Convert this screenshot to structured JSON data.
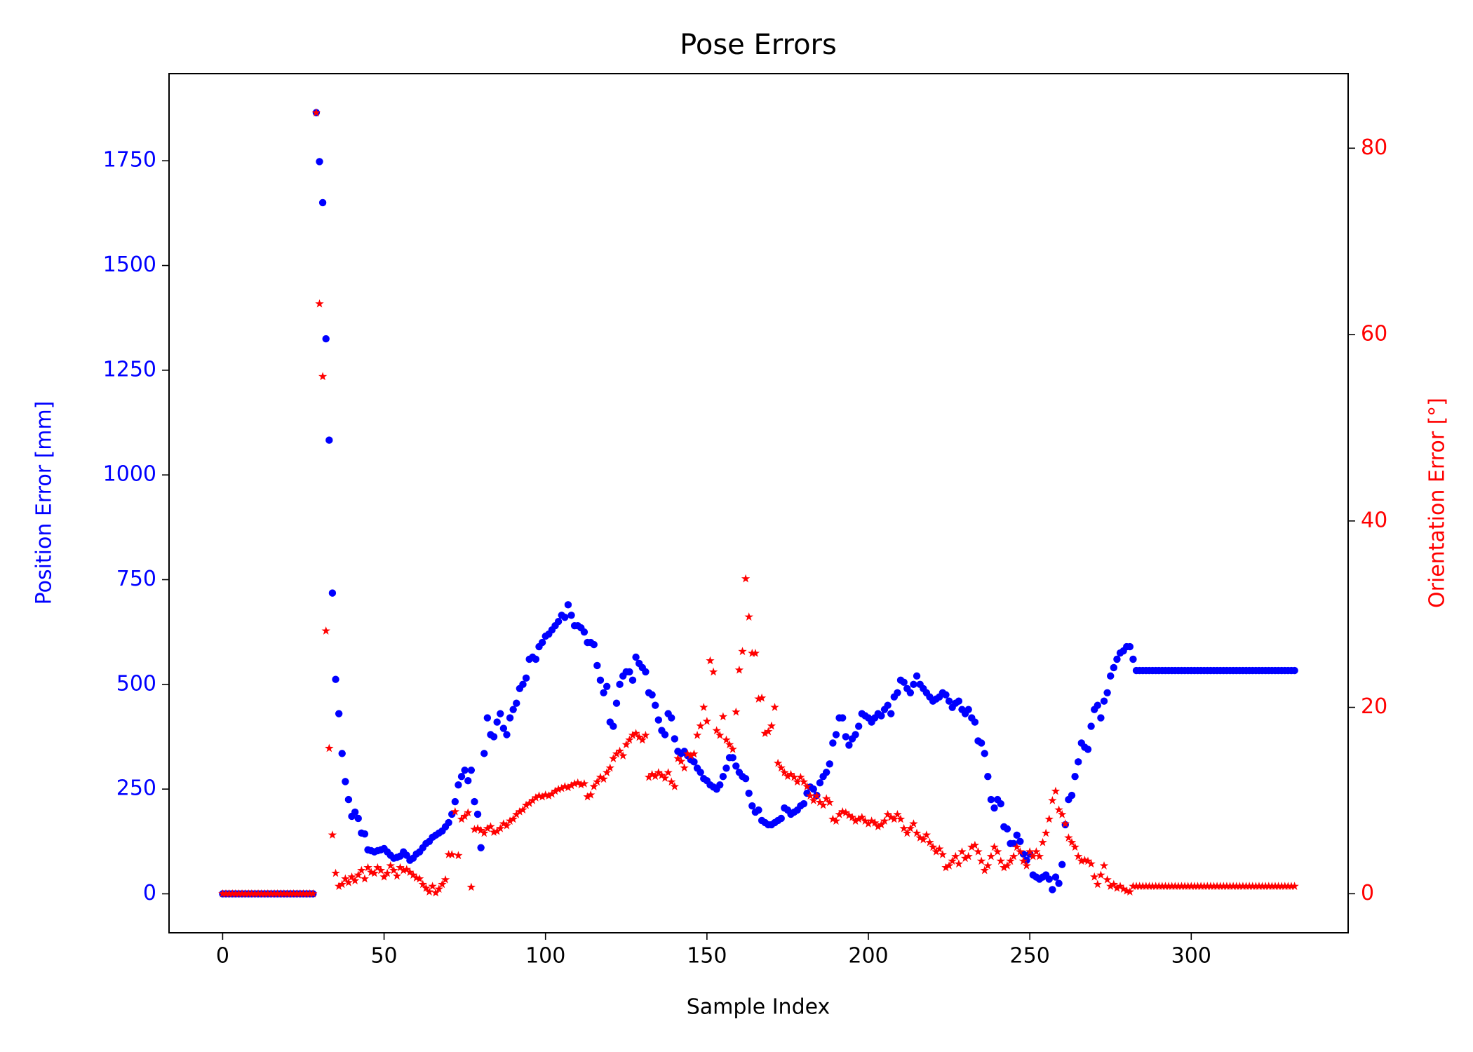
{
  "chart_data": {
    "type": "scatter",
    "title": "Pose Errors",
    "xlabel": "Sample Index",
    "ylabel": "Position Error [mm]",
    "y2label": "Orientation Error [°]",
    "xlim": [
      -16.6,
      348.6
    ],
    "xticks": [
      0,
      50,
      100,
      150,
      200,
      250,
      300
    ],
    "ylim": [
      -93,
      1958
    ],
    "yticks": [
      0,
      250,
      500,
      750,
      1000,
      1250,
      1500,
      1750
    ],
    "y2lim": [
      -4.19,
      88
    ],
    "y2ticks": [
      0,
      20,
      40,
      60,
      80
    ],
    "ycolor": "#0000ff",
    "y2color": "#ff0000",
    "x": [
      0,
      1,
      2,
      3,
      4,
      5,
      6,
      7,
      8,
      9,
      10,
      11,
      12,
      13,
      14,
      15,
      16,
      17,
      18,
      19,
      20,
      21,
      22,
      23,
      24,
      25,
      26,
      27,
      28,
      29,
      30,
      31,
      32,
      33,
      34,
      35,
      36,
      37,
      38,
      39,
      40,
      41,
      42,
      43,
      44,
      45,
      46,
      47,
      48,
      49,
      50,
      51,
      52,
      53,
      54,
      55,
      56,
      57,
      58,
      59,
      60,
      61,
      62,
      63,
      64,
      65,
      66,
      67,
      68,
      69,
      70,
      71,
      72,
      73,
      74,
      75,
      76,
      77,
      78,
      79,
      80,
      81,
      82,
      83,
      84,
      85,
      86,
      87,
      88,
      89,
      90,
      91,
      92,
      93,
      94,
      95,
      96,
      97,
      98,
      99,
      100,
      101,
      102,
      103,
      104,
      105,
      106,
      107,
      108,
      109,
      110,
      111,
      112,
      113,
      114,
      115,
      116,
      117,
      118,
      119,
      120,
      121,
      122,
      123,
      124,
      125,
      126,
      127,
      128,
      129,
      130,
      131,
      132,
      133,
      134,
      135,
      136,
      137,
      138,
      139,
      140,
      141,
      142,
      143,
      144,
      145,
      146,
      147,
      148,
      149,
      150,
      151,
      152,
      153,
      154,
      155,
      156,
      157,
      158,
      159,
      160,
      161,
      162,
      163,
      164,
      165,
      166,
      167,
      168,
      169,
      170,
      171,
      172,
      173,
      174,
      175,
      176,
      177,
      178,
      179,
      180,
      181,
      182,
      183,
      184,
      185,
      186,
      187,
      188,
      189,
      190,
      191,
      192,
      193,
      194,
      195,
      196,
      197,
      198,
      199,
      200,
      201,
      202,
      203,
      204,
      205,
      206,
      207,
      208,
      209,
      210,
      211,
      212,
      213,
      214,
      215,
      216,
      217,
      218,
      219,
      220,
      221,
      222,
      223,
      224,
      225,
      226,
      227,
      228,
      229,
      230,
      231,
      232,
      233,
      234,
      235,
      236,
      237,
      238,
      239,
      240,
      241,
      242,
      243,
      244,
      245,
      246,
      247,
      248,
      249,
      250,
      251,
      252,
      253,
      254,
      255,
      256,
      257,
      258,
      259,
      260,
      261,
      262,
      263,
      264,
      265,
      266,
      267,
      268,
      269,
      270,
      271,
      272,
      273,
      274,
      275,
      276,
      277,
      278,
      279,
      280,
      281,
      282,
      283,
      284,
      285,
      286,
      287,
      288,
      289,
      290,
      291,
      292,
      293,
      294,
      295,
      296,
      297,
      298,
      299,
      300,
      301,
      302,
      303,
      304,
      305,
      306,
      307,
      308,
      309,
      310,
      311,
      312,
      313,
      314,
      315,
      316,
      317,
      318,
      319,
      320,
      321,
      322,
      323,
      324,
      325,
      326,
      327,
      328,
      329,
      330,
      331,
      332
    ],
    "series": [
      {
        "color": "#0000ff",
        "marker": "circle",
        "axis": "y",
        "values": [
          0,
          0,
          0,
          0,
          0,
          0,
          0,
          0,
          0,
          0,
          0,
          0,
          0,
          0,
          0,
          0,
          0,
          0,
          0,
          0,
          0,
          0,
          0,
          0,
          0,
          0,
          0,
          0,
          0,
          1865,
          1748,
          1650,
          1325,
          1083,
          718,
          512,
          430,
          335,
          268,
          225,
          185,
          195,
          180,
          145,
          143,
          105,
          103,
          100,
          103,
          105,
          108,
          100,
          92,
          85,
          87,
          90,
          100,
          92,
          80,
          85,
          95,
          100,
          110,
          120,
          125,
          135,
          140,
          145,
          150,
          160,
          170,
          190,
          220,
          260,
          280,
          295,
          270,
          295,
          220,
          190,
          110,
          335,
          420,
          380,
          375,
          410,
          430,
          395,
          380,
          420,
          440,
          455,
          490,
          500,
          515,
          560,
          565,
          560,
          590,
          600,
          615,
          620,
          630,
          640,
          650,
          665,
          660,
          690,
          665,
          640,
          640,
          635,
          625,
          600,
          600,
          595,
          545,
          510,
          480,
          495,
          410,
          400,
          455,
          500,
          520,
          530,
          530,
          510,
          565,
          550,
          540,
          530,
          480,
          475,
          450,
          415,
          390,
          380,
          430,
          420,
          370,
          340,
          335,
          340,
          330,
          320,
          315,
          300,
          290,
          275,
          270,
          260,
          255,
          250,
          260,
          280,
          300,
          325,
          325,
          305,
          290,
          280,
          275,
          240,
          210,
          195,
          200,
          175,
          170,
          165,
          165,
          170,
          175,
          180,
          205,
          200,
          190,
          195,
          200,
          210,
          215,
          240,
          255,
          250,
          235,
          265,
          280,
          290,
          310,
          360,
          380,
          420,
          420,
          375,
          355,
          370,
          380,
          400,
          430,
          425,
          420,
          410,
          420,
          430,
          425,
          440,
          450,
          430,
          470,
          480,
          510,
          505,
          490,
          480,
          500,
          520,
          500,
          490,
          480,
          470,
          460,
          465,
          470,
          480,
          475,
          460,
          445,
          455,
          460,
          440,
          430,
          440,
          420,
          410,
          365,
          360,
          335,
          280,
          225,
          205,
          225,
          215,
          160,
          155,
          120,
          120,
          140,
          125,
          95,
          80,
          95,
          45,
          40,
          35,
          40,
          45,
          35,
          10,
          40,
          25,
          70,
          165,
          225,
          235,
          280,
          315,
          360,
          350,
          345,
          400,
          440,
          450,
          420,
          460,
          480,
          520,
          540,
          560,
          575,
          580,
          590,
          590,
          560,
          533,
          533,
          533,
          533,
          533,
          533,
          533,
          533,
          533,
          533,
          533,
          533,
          533,
          533,
          533,
          533,
          533,
          533,
          533,
          533,
          533,
          533,
          533,
          533,
          533,
          533,
          533,
          533,
          533,
          533,
          533,
          533,
          533,
          533,
          533,
          533,
          533,
          533,
          533,
          533,
          533,
          533,
          533,
          533,
          533,
          533,
          533,
          533,
          533,
          533
        ]
      },
      {
        "color": "#ff0000",
        "marker": "star",
        "axis": "y2",
        "values": [
          0,
          0,
          0,
          0,
          0,
          0,
          0,
          0,
          0,
          0,
          0,
          0,
          0,
          0,
          0,
          0,
          0,
          0,
          0,
          0,
          0,
          0,
          0,
          0,
          0,
          0,
          0,
          0,
          0,
          83.8,
          63.3,
          55.5,
          28.2,
          15.6,
          6.3,
          2.2,
          0.8,
          1.0,
          1.6,
          1.2,
          1.8,
          1.4,
          2.0,
          2.5,
          1.6,
          2.8,
          2.3,
          2.2,
          2.8,
          2.5,
          1.8,
          2.2,
          3.0,
          2.5,
          1.9,
          2.8,
          2.5,
          2.6,
          2.3,
          2.0,
          1.7,
          1.6,
          1.0,
          0.6,
          0.2,
          0.8,
          0.1,
          0.5,
          1.0,
          1.5,
          4.2,
          4.2,
          8.8,
          4.1,
          8.0,
          8.3,
          8.7,
          0.7,
          6.9,
          7.0,
          6.8,
          6.5,
          7.0,
          7.2,
          6.6,
          6.7,
          7.0,
          7.5,
          7.3,
          7.8,
          8.0,
          8.5,
          8.8,
          9.0,
          9.5,
          9.7,
          10.0,
          10.3,
          10.5,
          10.4,
          10.6,
          10.5,
          10.7,
          11.0,
          11.2,
          11.3,
          11.5,
          11.4,
          11.6,
          11.8,
          11.9,
          11.7,
          11.8,
          10.4,
          10.6,
          11.5,
          12.0,
          12.5,
          12.3,
          13.0,
          13.5,
          14.5,
          15.0,
          15.3,
          14.8,
          16.0,
          16.5,
          17.0,
          17.2,
          16.8,
          16.5,
          17.0,
          12.5,
          12.8,
          12.6,
          13.0,
          12.7,
          12.4,
          13.0,
          12.0,
          11.5,
          14.5,
          14.2,
          13.5,
          15.0,
          14.8,
          15.0,
          17.0,
          18.0,
          20.0,
          18.5,
          25.0,
          23.8,
          17.5,
          17.0,
          19.0,
          16.5,
          16.0,
          15.5,
          19.5,
          24.0,
          26.0,
          33.8,
          29.7,
          25.8,
          25.8,
          20.9,
          21.0,
          17.2,
          17.4,
          18.0,
          20.0,
          14.0,
          13.5,
          13.0,
          12.6,
          12.8,
          12.5,
          12.0,
          12.5,
          12.0,
          11.5,
          10.5,
          10.0,
          10.5,
          9.8,
          9.5,
          10.2,
          9.8,
          8.0,
          7.8,
          8.5,
          8.8,
          8.7,
          8.4,
          8.2,
          7.8,
          8.0,
          8.2,
          7.8,
          7.5,
          7.8,
          7.6,
          7.2,
          7.4,
          7.8,
          8.5,
          8.2,
          8.0,
          8.5,
          8.0,
          7.0,
          6.5,
          7.0,
          7.5,
          6.5,
          6.0,
          5.8,
          6.3,
          5.5,
          5.0,
          4.5,
          4.8,
          4.2,
          2.8,
          3.0,
          3.5,
          4.0,
          3.2,
          4.5,
          3.8,
          4.0,
          5.0,
          5.2,
          4.5,
          3.5,
          2.5,
          3.0,
          4.0,
          5.0,
          4.5,
          3.5,
          2.8,
          3.0,
          3.5,
          4.0,
          5.0,
          4.5,
          3.5,
          3.0,
          4.5,
          4.0,
          4.5,
          4.0,
          5.5,
          6.5,
          8.0,
          10.0,
          11.0,
          9.0,
          8.5,
          7.5,
          6.0,
          5.5,
          5.0,
          4.0,
          3.5,
          3.6,
          3.5,
          3.2,
          1.8,
          1.0,
          2.0,
          3.0,
          1.5,
          0.8,
          1.0,
          0.6,
          0.8,
          0.5,
          0.3,
          0.2,
          0.8,
          0.8,
          0.8,
          0.8,
          0.8,
          0.8,
          0.8,
          0.8,
          0.8,
          0.8,
          0.8,
          0.8,
          0.8,
          0.8,
          0.8,
          0.8,
          0.8,
          0.8,
          0.8,
          0.8,
          0.8,
          0.8,
          0.8,
          0.8,
          0.8,
          0.8,
          0.8,
          0.8,
          0.8,
          0.8,
          0.8,
          0.8,
          0.8,
          0.8,
          0.8,
          0.8,
          0.8,
          0.8,
          0.8,
          0.8,
          0.8,
          0.8,
          0.8,
          0.8,
          0.8,
          0.8,
          0.8,
          0.8,
          0.8,
          0.8,
          0.8
        ]
      }
    ]
  }
}
